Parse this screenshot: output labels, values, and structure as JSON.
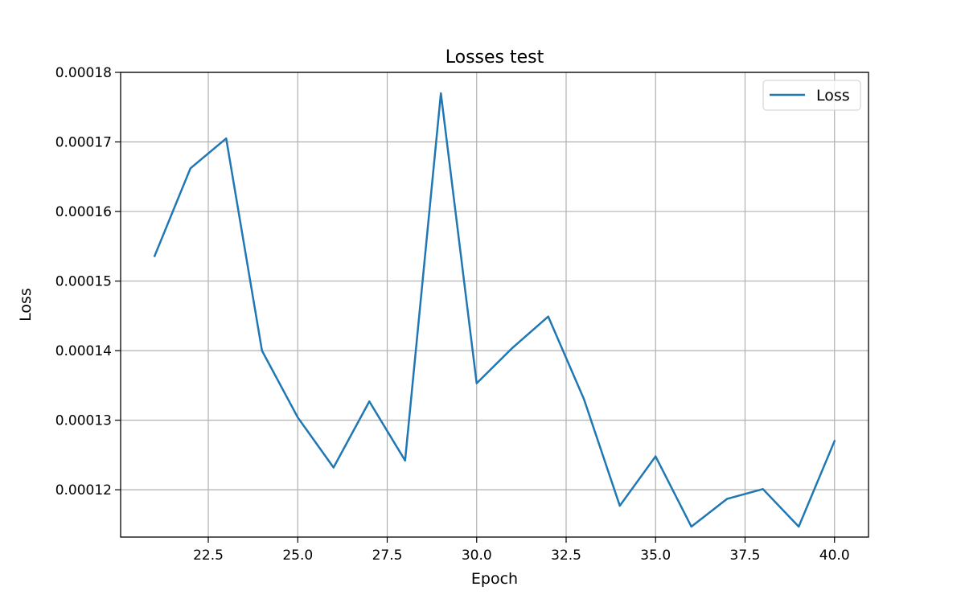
{
  "chart_data": {
    "type": "line",
    "title": "Losses test",
    "xlabel": "Epoch",
    "ylabel": "Loss",
    "xlim": [
      20.05,
      40.95
    ],
    "ylim": [
      0.0001132,
      0.00018
    ],
    "x_ticks": [
      22.5,
      25.0,
      27.5,
      30.0,
      32.5,
      35.0,
      37.5,
      40.0
    ],
    "x_tick_labels": [
      "22.5",
      "25.0",
      "27.5",
      "30.0",
      "32.5",
      "35.0",
      "37.5",
      "40.0"
    ],
    "y_ticks": [
      0.00012,
      0.00013,
      0.00014,
      0.00015,
      0.00016,
      0.00017,
      0.00018
    ],
    "y_tick_labels": [
      "0.00012",
      "0.00013",
      "0.00014",
      "0.00015",
      "0.00016",
      "0.00017",
      "0.00018"
    ],
    "grid": true,
    "legend_position": "top-right",
    "series": [
      {
        "name": "Loss",
        "color": "#1f77b4",
        "x": [
          21,
          22,
          23,
          24,
          25,
          26,
          27,
          28,
          29,
          30,
          31,
          32,
          33,
          34,
          35,
          36,
          37,
          38,
          39,
          40
        ],
        "y": [
          0.0001536,
          0.0001662,
          0.0001705,
          0.00014,
          0.0001304,
          0.0001232,
          0.0001327,
          0.0001242,
          0.000177,
          0.0001353,
          0.0001404,
          0.0001449,
          0.000133,
          0.0001177,
          0.0001248,
          0.0001147,
          0.0001187,
          0.0001201,
          0.0001147,
          0.000127
        ]
      }
    ]
  }
}
